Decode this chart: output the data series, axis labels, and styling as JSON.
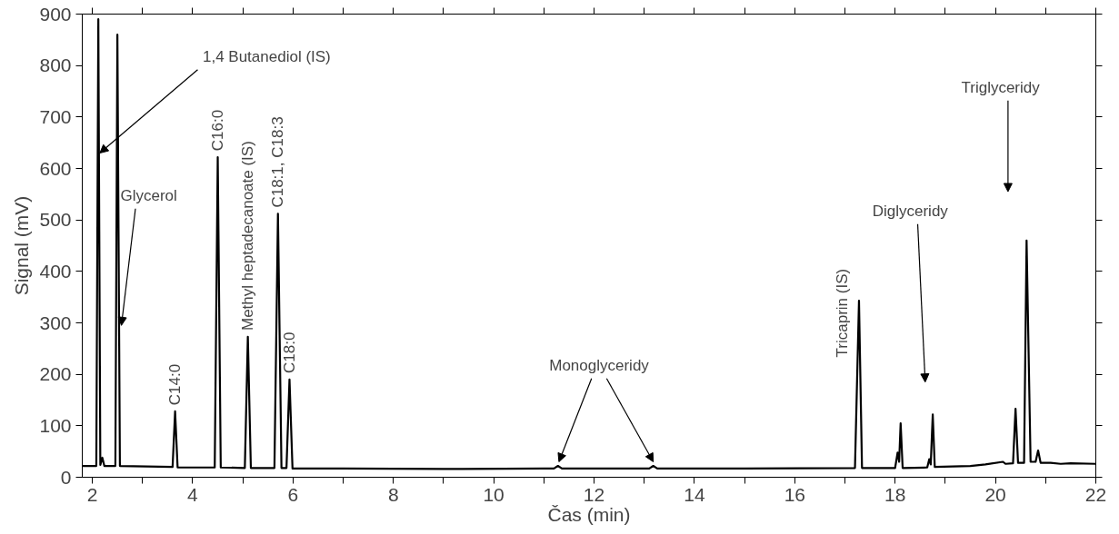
{
  "chart_data": {
    "type": "line",
    "xlabel": "Čas (min)",
    "ylabel": "Signal (mV)",
    "x": [
      1.8,
      2.08,
      2.12,
      2.16,
      2.2,
      2.24,
      2.46,
      2.5,
      2.55,
      3.6,
      3.65,
      3.7,
      4.44,
      4.5,
      4.56,
      5.04,
      5.1,
      5.16,
      5.63,
      5.7,
      5.77,
      5.87,
      5.93,
      5.99,
      7,
      9,
      11,
      11.2,
      11.28,
      11.36,
      13.1,
      13.18,
      13.26,
      15,
      17.2,
      17.28,
      17.34,
      18.0,
      18.05,
      18.08,
      18.11,
      18.15,
      18.64,
      18.68,
      18.71,
      18.75,
      18.79,
      19.5,
      19.8,
      20.15,
      20.2,
      20.35,
      20.4,
      20.45,
      20.57,
      20.62,
      20.7,
      20.8,
      20.85,
      20.9,
      21.1,
      21.3,
      21.5,
      22
    ],
    "series": [
      {
        "color": "#000000",
        "values": [
          22,
          22,
          890,
          24,
          38,
          22,
          22,
          860,
          22,
          20,
          128,
          19,
          19,
          622,
          19,
          18,
          273,
          18,
          18,
          512,
          18,
          18,
          190,
          17,
          17,
          16,
          17,
          17,
          22,
          17,
          17,
          22,
          17,
          17,
          18,
          343,
          18,
          18,
          48,
          30,
          105,
          18,
          19,
          35,
          25,
          122,
          20,
          22,
          25,
          30,
          26,
          27,
          133,
          28,
          28,
          460,
          30,
          30,
          52,
          28,
          28,
          26,
          27,
          26
        ]
      }
    ],
    "xlim": [
      1.8,
      22
    ],
    "ylim": [
      0,
      900
    ],
    "xticks": [
      2,
      {
        "value": 3,
        "label": null
      },
      4,
      {
        "value": 5,
        "label": null
      },
      6,
      {
        "value": 7,
        "label": null
      },
      8,
      {
        "value": 9,
        "label": null
      },
      10,
      {
        "value": 11,
        "label": null
      },
      12,
      {
        "value": 13,
        "label": null
      },
      14,
      {
        "value": 15,
        "label": null
      },
      16,
      {
        "value": 17,
        "label": null
      },
      18,
      {
        "value": 19,
        "label": null
      },
      20,
      {
        "value": 21,
        "label": null
      },
      22
    ],
    "yticks": [
      0,
      100,
      200,
      300,
      400,
      500,
      600,
      700,
      800,
      900
    ],
    "grid": false,
    "marker": "none",
    "line_style": "solid",
    "annotations": [
      {
        "text": "1,4 Butanediol (IS)",
        "x": 2.15,
        "y": 630
      },
      {
        "text": "Glycerol",
        "x": 2.58,
        "y": 295
      },
      {
        "text": "C14:0",
        "x": 3.65,
        "y": 128
      },
      {
        "text": "C16:0",
        "x": 4.5,
        "y": 622
      },
      {
        "text": "Methyl heptadecanoate (IS)",
        "x": 5.1,
        "y": 273
      },
      {
        "text": "C18:1, C18:3",
        "x": 5.7,
        "y": 512
      },
      {
        "text": "C18:0",
        "x": 5.93,
        "y": 190
      },
      {
        "text": "Monoglyceridy",
        "x": 11.3,
        "y": 30
      },
      {
        "text": "Tricaprin (IS)",
        "x": 17.28,
        "y": 343
      },
      "Diglyceridy",
      "Triglyceridy"
    ]
  }
}
